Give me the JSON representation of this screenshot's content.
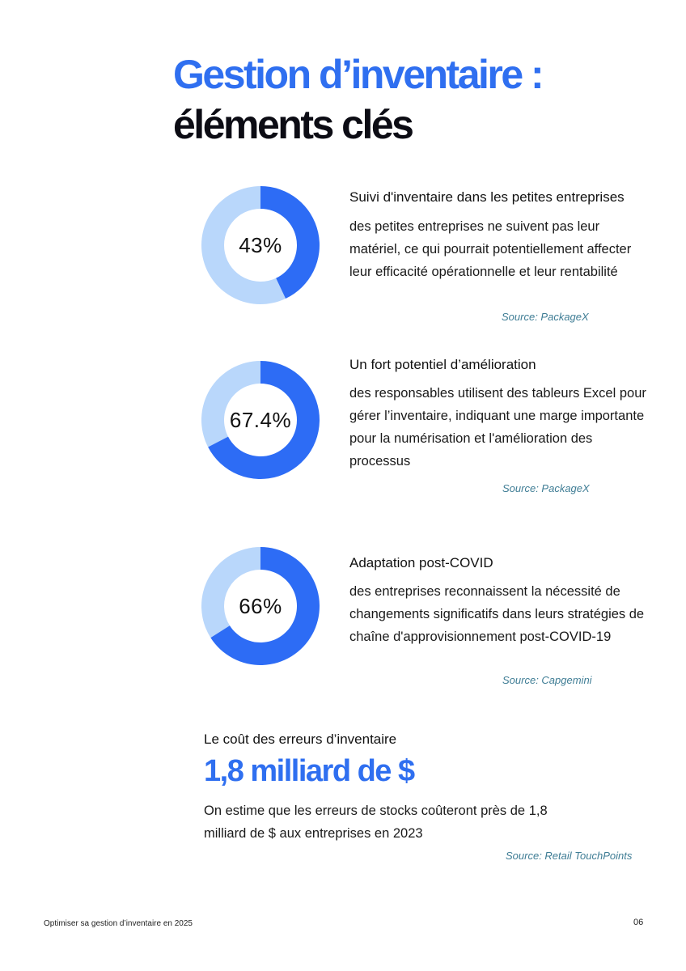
{
  "title": {
    "line1": "Gestion d’inventaire :",
    "line2": "éléments clés"
  },
  "stats": [
    {
      "value": "43%",
      "percent": 43,
      "title": "Suivi d'inventaire dans les petites entreprises",
      "description": "des petites entreprises ne suivent pas leur matériel, ce qui pourrait potentiellement affecter leur efficacité opérationnelle et leur rentabilité",
      "source": "Source: PackageX"
    },
    {
      "value": "67.4%",
      "percent": 67.4,
      "title": "Un fort potentiel d’amélioration",
      "description": "des responsables utilisent des tableurs Excel pour gérer l’inventaire, indiquant une marge importante pour la numérisation et l'amélioration des processus",
      "source": "Source: PackageX"
    },
    {
      "value": "66%",
      "percent": 66,
      "title": "Adaptation post-COVID",
      "description": "des entreprises reconnaissent la nécessité de changements significatifs dans leurs stratégies de chaîne d'approvisionnement post-COVID-19",
      "source": "Source: Capgemini"
    }
  ],
  "cost": {
    "title": "Le coût des erreurs d’inventaire",
    "value": "1,8 milliard de $",
    "description": "On estime que les erreurs de stocks coûteront près de 1,8 milliard de $ aux entreprises en 2023",
    "source": "Source: Retail TouchPoints"
  },
  "footer": {
    "left": "Optimiser sa gestion d’inventaire en 2025",
    "page": "06"
  },
  "colors": {
    "accent": "#2f6ff0",
    "donut_fill": "#2d6cf5",
    "donut_track": "#b9d7fb",
    "source": "#3f7d95"
  }
}
